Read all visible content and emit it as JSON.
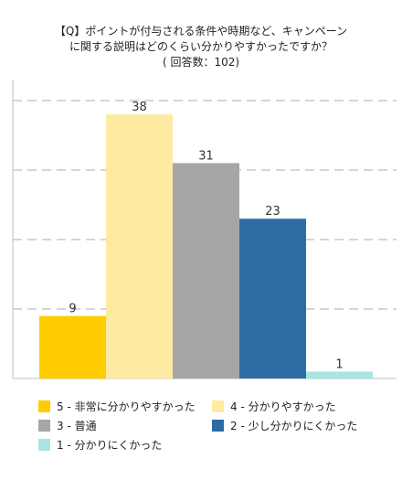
{
  "chart_data": {
    "type": "bar",
    "title_lines": [
      "【Q】ポイントが付与される条件や時期など、キャンペーン",
      "に関する説明はどのくらい分かりやすかったですか？",
      "( 回答数：102)"
    ],
    "categories": [
      "5 - 非常に分かりやすかった",
      "4 - 分かりやすかった",
      "3 - 普通",
      "2 - 少し分かりにくかった",
      "1 - 分かりにくかった"
    ],
    "values": [
      9,
      38,
      31,
      23,
      1
    ],
    "value_labels": [
      "9",
      "38",
      "31",
      "23",
      "1"
    ],
    "colors": [
      "#ffcc00",
      "#ffeaa1",
      "#a6a6a6",
      "#2e6da4",
      "#a8e6e3"
    ],
    "ylim": [
      0,
      40
    ],
    "gridlines": [
      10,
      20,
      30,
      40
    ],
    "grid": true,
    "legend_position": "bottom"
  }
}
